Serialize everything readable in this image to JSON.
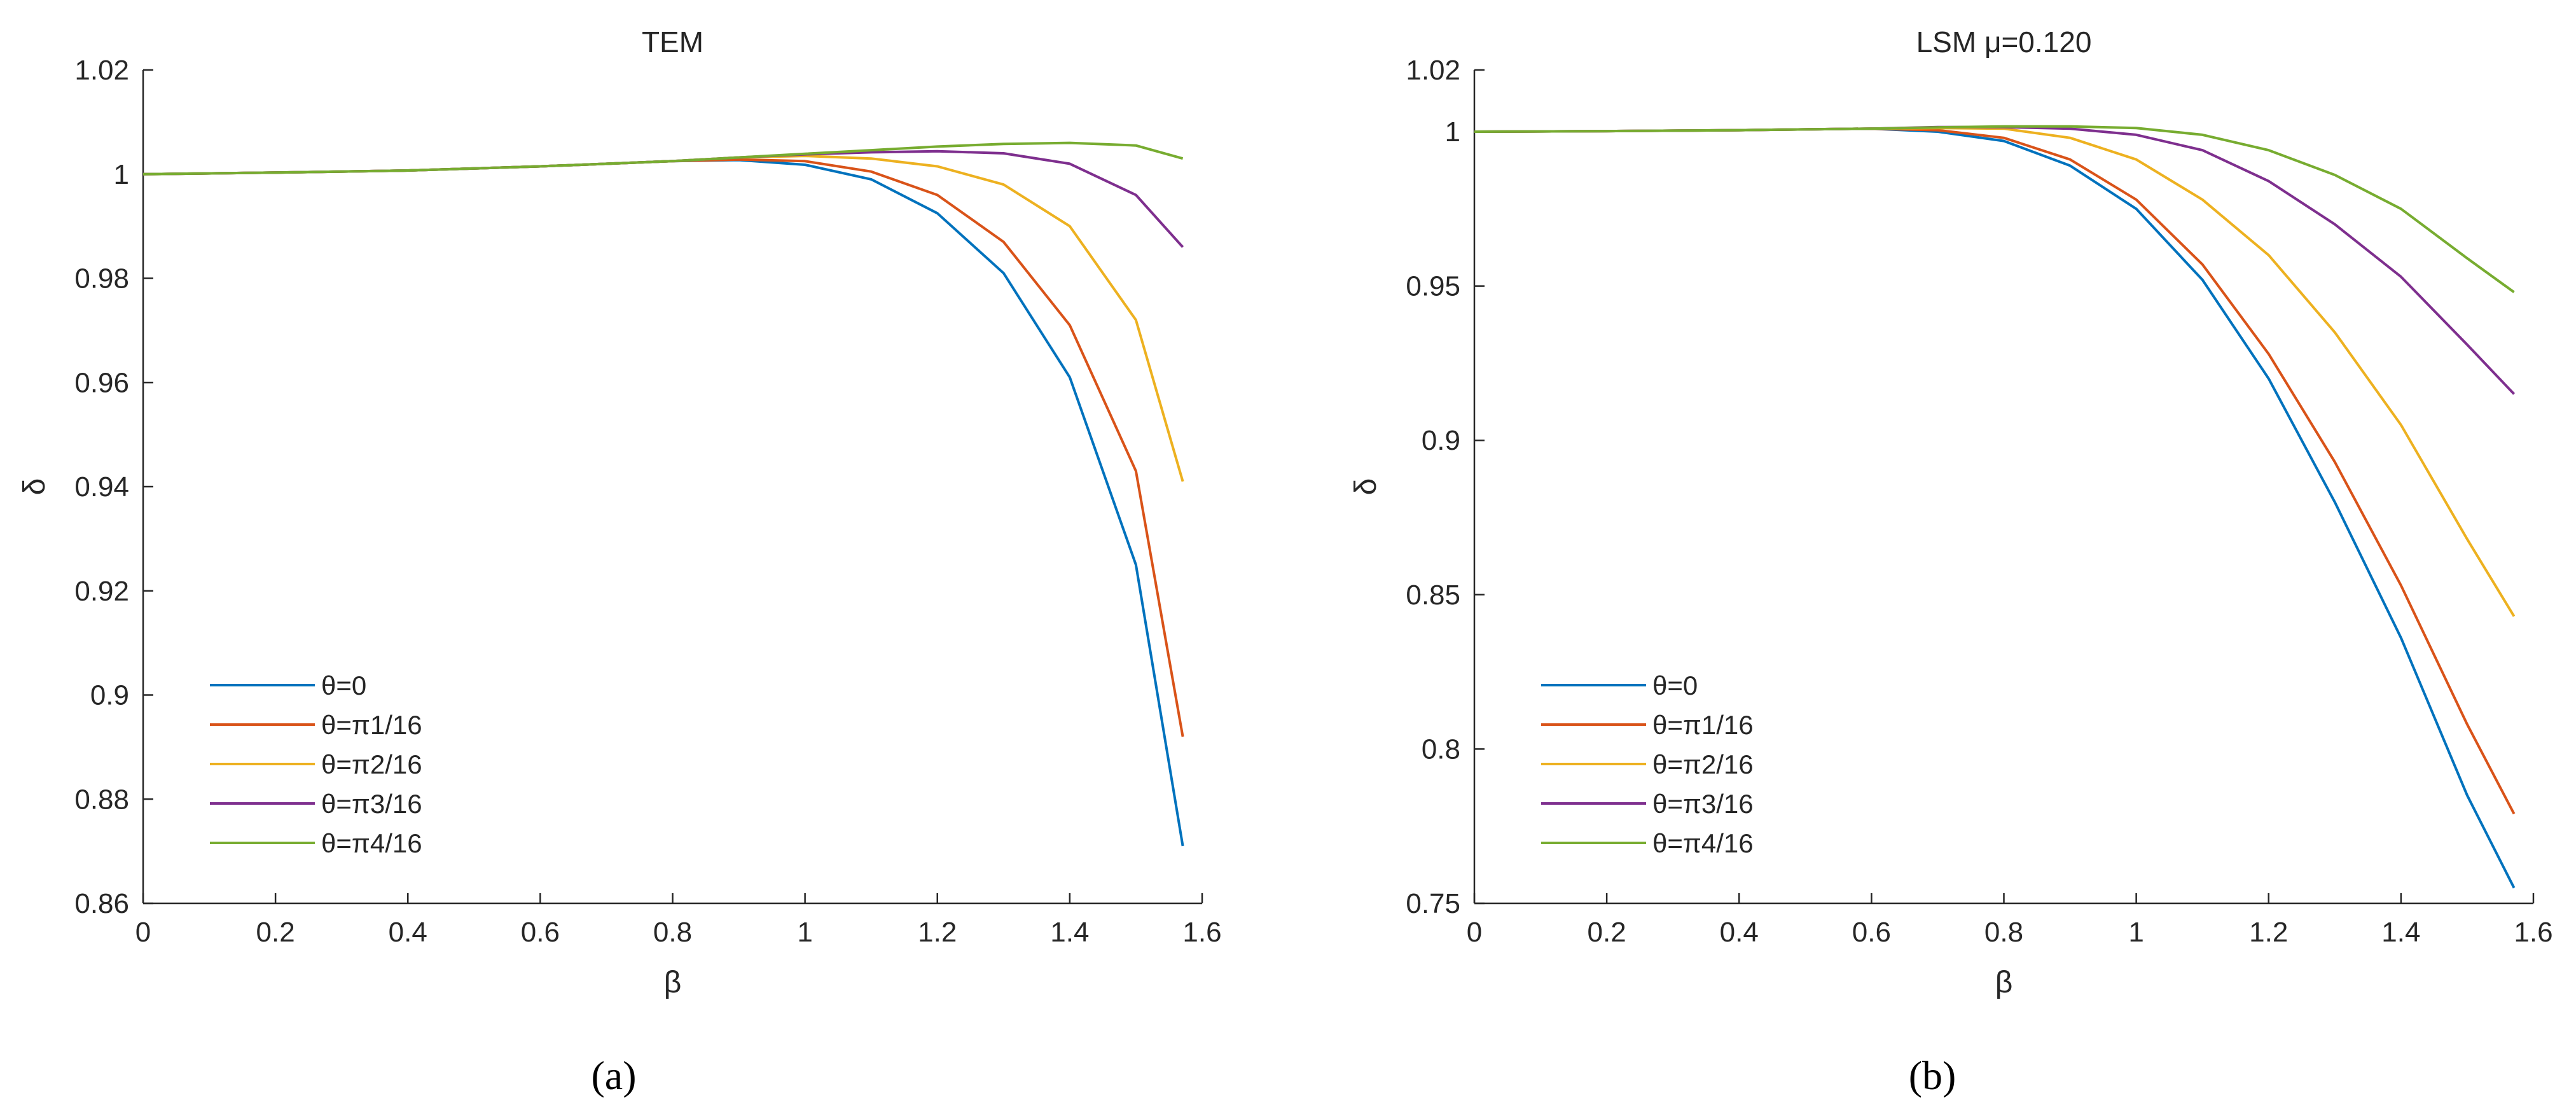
{
  "chart_data": [
    {
      "panel_label": "(a)",
      "type": "line",
      "title": "TEM",
      "xlabel": "β",
      "ylabel": "δ",
      "xlim": [
        0,
        1.6
      ],
      "ylim": [
        0.86,
        1.02
      ],
      "xticks": [
        0,
        0.2,
        0.4,
        0.6,
        0.8,
        1,
        1.2,
        1.4,
        1.6
      ],
      "xtick_labels": [
        "0",
        "0.2",
        "0.4",
        "0.6",
        "0.8",
        "1",
        "1.2",
        "1.4",
        "1.6"
      ],
      "yticks": [
        0.86,
        0.88,
        0.9,
        0.92,
        0.94,
        0.96,
        0.98,
        1,
        1.02
      ],
      "ytick_labels": [
        "0.86",
        "0.88",
        "0.9",
        "0.92",
        "0.94",
        "0.96",
        "0.98",
        "1",
        "1.02"
      ],
      "grid": false,
      "legend_position": "bottom-left",
      "x": [
        0,
        0.2,
        0.4,
        0.6,
        0.8,
        0.9,
        1.0,
        1.1,
        1.2,
        1.3,
        1.4,
        1.5,
        1.5708
      ],
      "series": [
        {
          "name": "θ=0",
          "color": "#0072BD",
          "values": [
            1.0,
            1.0003,
            1.0007,
            1.0015,
            1.0025,
            1.0027,
            1.0018,
            0.999,
            0.9925,
            0.981,
            0.961,
            0.925,
            0.871
          ]
        },
        {
          "name": "θ=π1/16",
          "color": "#D95319",
          "values": [
            1.0,
            1.0003,
            1.0007,
            1.0015,
            1.0025,
            1.0028,
            1.0025,
            1.0005,
            0.996,
            0.987,
            0.971,
            0.943,
            0.892
          ]
        },
        {
          "name": "θ=π2/16",
          "color": "#EDB120",
          "values": [
            1.0,
            1.0003,
            1.0007,
            1.0015,
            1.0025,
            1.0032,
            1.0035,
            1.003,
            1.0015,
            0.998,
            0.99,
            0.972,
            0.941
          ]
        },
        {
          "name": "θ=π3/16",
          "color": "#7E2F8E",
          "values": [
            1.0,
            1.0003,
            1.0007,
            1.0015,
            1.0025,
            1.0032,
            1.0038,
            1.0042,
            1.0044,
            1.004,
            1.002,
            0.996,
            0.986
          ]
        },
        {
          "name": "θ=π4/16",
          "color": "#77AC30",
          "values": [
            1.0,
            1.0003,
            1.0007,
            1.0015,
            1.0025,
            1.0032,
            1.0039,
            1.0046,
            1.0053,
            1.0058,
            1.006,
            1.0055,
            1.003
          ]
        }
      ]
    },
    {
      "panel_label": "(b)",
      "type": "line",
      "title": "LSM μ=0.120",
      "xlabel": "β",
      "ylabel": "δ",
      "xlim": [
        0,
        1.6
      ],
      "ylim": [
        0.75,
        1.02
      ],
      "xticks": [
        0,
        0.2,
        0.4,
        0.6,
        0.8,
        1,
        1.2,
        1.4,
        1.6
      ],
      "xtick_labels": [
        "0",
        "0.2",
        "0.4",
        "0.6",
        "0.8",
        "1",
        "1.2",
        "1.4",
        "1.6"
      ],
      "yticks": [
        0.75,
        0.8,
        0.85,
        0.9,
        0.95,
        1,
        1.02
      ],
      "ytick_labels": [
        "0.75",
        "0.8",
        "0.85",
        "0.9",
        "0.95",
        "1",
        "1.02"
      ],
      "grid": false,
      "legend_position": "bottom-left",
      "x": [
        0,
        0.2,
        0.4,
        0.6,
        0.7,
        0.8,
        0.9,
        1.0,
        1.1,
        1.2,
        1.3,
        1.4,
        1.5,
        1.5708
      ],
      "series": [
        {
          "name": "θ=0",
          "color": "#0072BD",
          "values": [
            1.0,
            1.0002,
            1.0005,
            1.001,
            1.0,
            0.997,
            0.989,
            0.975,
            0.952,
            0.92,
            0.88,
            0.836,
            0.785,
            0.755
          ]
        },
        {
          "name": "θ=π1/16",
          "color": "#D95319",
          "values": [
            1.0,
            1.0002,
            1.0005,
            1.001,
            1.0005,
            0.998,
            0.991,
            0.978,
            0.957,
            0.928,
            0.893,
            0.853,
            0.808,
            0.779
          ]
        },
        {
          "name": "θ=π2/16",
          "color": "#EDB120",
          "values": [
            1.0,
            1.0002,
            1.0005,
            1.001,
            1.0012,
            1.001,
            0.998,
            0.991,
            0.978,
            0.96,
            0.935,
            0.905,
            0.868,
            0.843
          ]
        },
        {
          "name": "θ=π3/16",
          "color": "#7E2F8E",
          "values": [
            1.0,
            1.0002,
            1.0005,
            1.001,
            1.0015,
            1.0015,
            1.001,
            0.999,
            0.994,
            0.984,
            0.97,
            0.953,
            0.931,
            0.915
          ]
        },
        {
          "name": "θ=π4/16",
          "color": "#77AC30",
          "values": [
            1.0,
            1.0002,
            1.0005,
            1.001,
            1.0014,
            1.0017,
            1.0017,
            1.0012,
            0.999,
            0.994,
            0.986,
            0.975,
            0.959,
            0.948
          ]
        }
      ]
    }
  ]
}
